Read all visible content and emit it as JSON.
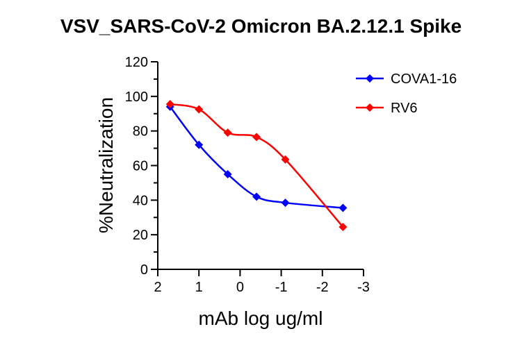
{
  "chart_data": {
    "type": "line",
    "title": "VSV_SARS-CoV-2 Omicron BA.2.12.1 Spike",
    "xlabel": "mAb log ug/ml",
    "ylabel": "%Neutralization",
    "xlim": [
      2,
      -3
    ],
    "ylim": [
      0,
      120
    ],
    "x_ticks": [
      "2",
      "1",
      "0",
      "-1",
      "-2",
      "-3"
    ],
    "y_ticks": [
      "0",
      "20",
      "40",
      "60",
      "80",
      "100",
      "120"
    ],
    "x_tick_values": [
      2,
      1,
      0,
      -1,
      -2,
      -3
    ],
    "y_tick_values": [
      0,
      20,
      40,
      60,
      80,
      100,
      120
    ],
    "legend_position": "top-right",
    "grid": false,
    "series": [
      {
        "name": "COVA1-16",
        "color": "#0000ff",
        "marker": "diamond",
        "x": [
          1.7,
          1.0,
          0.3,
          -0.4,
          -1.1,
          -2.5
        ],
        "y": [
          94,
          72,
          55,
          42,
          38.5,
          35.5
        ]
      },
      {
        "name": "RV6",
        "color": "#ff0000",
        "marker": "diamond",
        "x": [
          1.7,
          1.0,
          0.3,
          -0.4,
          -1.1,
          -2.5
        ],
        "y": [
          95.5,
          92.5,
          79,
          76.5,
          63.5,
          24.5
        ]
      }
    ]
  }
}
